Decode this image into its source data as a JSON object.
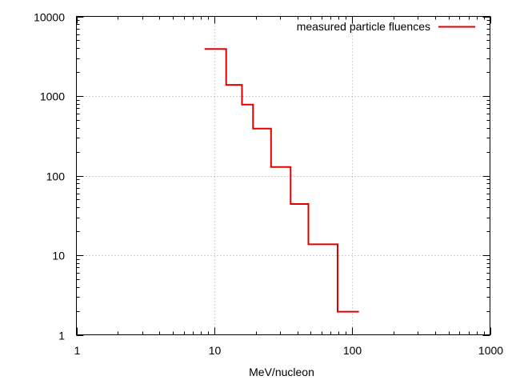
{
  "chart_data": {
    "type": "line",
    "style": "step",
    "xscale": "log",
    "yscale": "log",
    "xlim": [
      1,
      1000
    ],
    "ylim": [
      1,
      10000
    ],
    "xlabel": "MeV/nucleon",
    "ylabel": "",
    "title": "",
    "grid": true,
    "legend_position": "top-right",
    "x_ticks": [
      {
        "value": 1,
        "label": "1"
      },
      {
        "value": 10,
        "label": "10"
      },
      {
        "value": 100,
        "label": "100"
      },
      {
        "value": 1000,
        "label": "1000"
      }
    ],
    "y_ticks": [
      {
        "value": 1,
        "label": "1"
      },
      {
        "value": 10,
        "label": "10"
      },
      {
        "value": 100,
        "label": "100"
      },
      {
        "value": 1000,
        "label": "1000"
      },
      {
        "value": 10000,
        "label": "10000"
      }
    ],
    "series": [
      {
        "name": "measured particle fluences",
        "color": "#e00000",
        "points": [
          {
            "x": 8.5,
            "y": 3900
          },
          {
            "x": 12.2,
            "y": 1380
          },
          {
            "x": 15.9,
            "y": 780
          },
          {
            "x": 19.1,
            "y": 390
          },
          {
            "x": 25.8,
            "y": 128
          },
          {
            "x": 35.8,
            "y": 44
          },
          {
            "x": 48.2,
            "y": 13.7
          },
          {
            "x": 78.5,
            "y": 1.95
          },
          {
            "x": 112,
            "y": 1.95
          }
        ]
      }
    ]
  }
}
